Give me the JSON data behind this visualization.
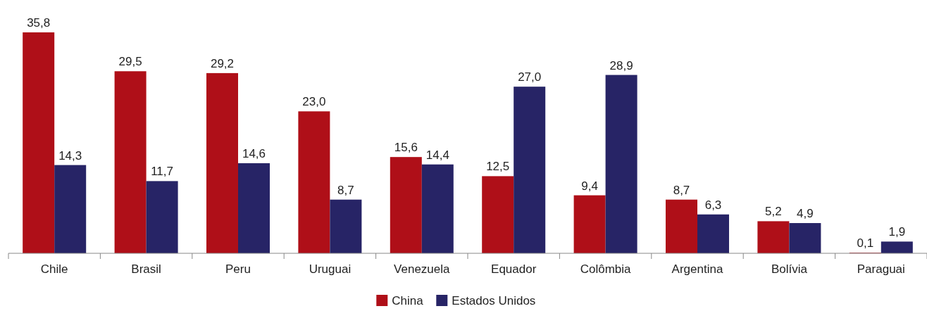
{
  "chart_data": {
    "type": "bar",
    "categories": [
      "Chile",
      "Brasil",
      "Peru",
      "Uruguai",
      "Venezuela",
      "Equador",
      "Colômbia",
      "Argentina",
      "Bolívia",
      "Paraguai"
    ],
    "series": [
      {
        "name": "China",
        "color": "#af0f18",
        "values": [
          35.8,
          29.5,
          29.2,
          23.0,
          15.6,
          12.5,
          9.4,
          8.7,
          5.2,
          0.1
        ],
        "value_labels": [
          "35,8",
          "29,5",
          "29,2",
          "23,0",
          "15,6",
          "12,5",
          "9,4",
          "8,7",
          "5,2",
          "0,1"
        ]
      },
      {
        "name": "Estados Unidos",
        "color": "#272466",
        "values": [
          14.3,
          11.7,
          14.6,
          8.7,
          14.4,
          27.0,
          28.9,
          6.3,
          4.9,
          1.9
        ],
        "value_labels": [
          "14,3",
          "11,7",
          "14,6",
          "8,7",
          "14,4",
          "27,0",
          "28,9",
          "6,3",
          "4,9",
          "1,9"
        ]
      }
    ],
    "legend": "bottom"
  }
}
